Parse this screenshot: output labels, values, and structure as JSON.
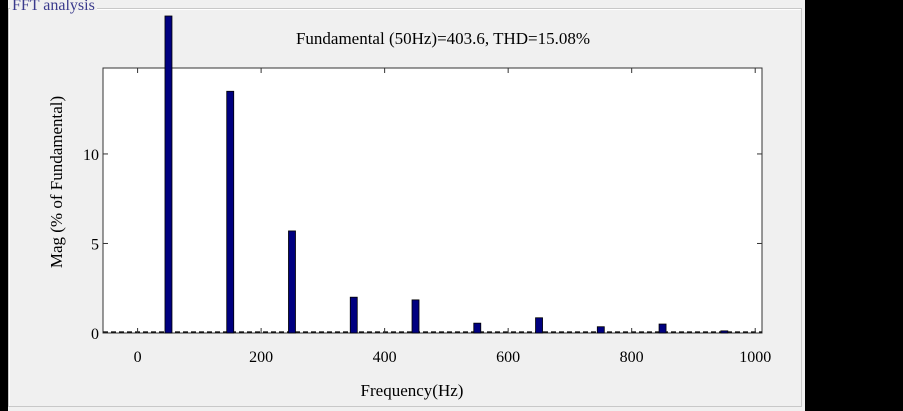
{
  "panel": {
    "title": "FFT analysis"
  },
  "chart_data": {
    "type": "bar",
    "title": "Fundamental (50Hz)=403.6, THD=15.08%",
    "xlabel": "Frequency(Hz)",
    "ylabel": "Mag (% of Fundamental)",
    "xlim": [
      -56,
      1011
    ],
    "ylim": [
      0,
      14.8
    ],
    "xticks": [
      0,
      200,
      400,
      600,
      800,
      1000
    ],
    "yticks": [
      0,
      5,
      10
    ],
    "grid": false,
    "legend": null,
    "bar_color": "#000080",
    "x": [
      50,
      150,
      250,
      350,
      450,
      550,
      650,
      750,
      850,
      950
    ],
    "values": [
      100,
      13.5,
      5.7,
      2.0,
      1.85,
      0.55,
      0.85,
      0.35,
      0.5,
      0.12
    ],
    "annotations": [
      "Fundamental bar (100%) clipped above axes top"
    ]
  }
}
